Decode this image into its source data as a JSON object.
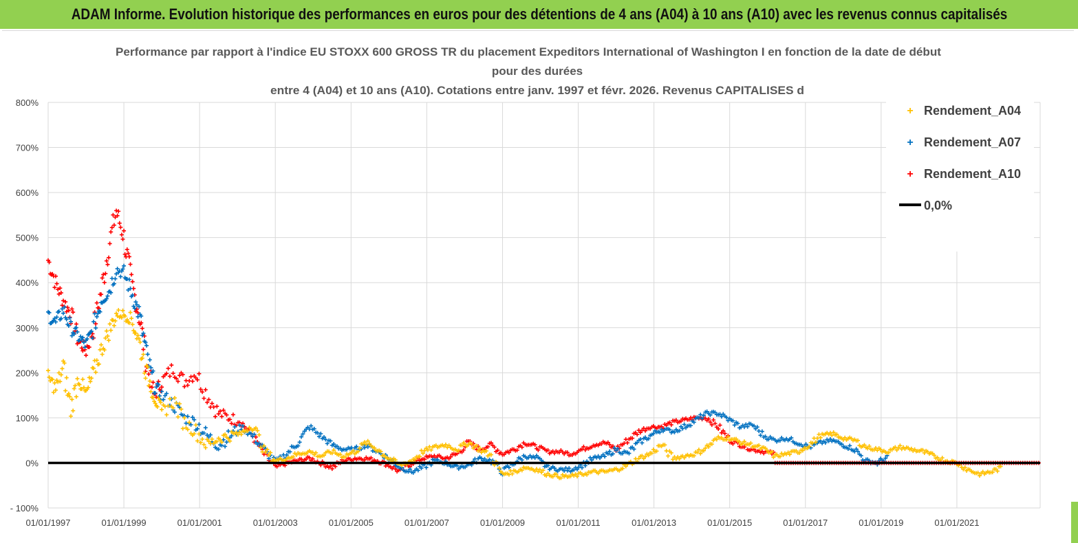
{
  "banner": {
    "title": "ADAM Informe. Evolution historique des performances en euros pour des détentions de 4 ans (A04) à 10 ans (A10) avec les revenus connus capitalisés"
  },
  "colors": {
    "banner_bg": "#92d050",
    "a04": "#ffc000",
    "a07": "#0070c0",
    "a10": "#ff0000",
    "zero": "#000000",
    "grid": "#d9d9d9"
  },
  "chart_data": {
    "type": "scatter",
    "title_lines": [
      "Performance par rapport à l'indice EU STOXX 600 GROSS TR  du placement Expeditors International of Washington I en fonction de la date de début",
      "pour des durées",
      "entre 4 (A04) et 10 ans (A10). Cotations entre janv. 1997 et févr. 2026. Revenus CAPITALISES d"
    ],
    "y_ticks": [
      "800%",
      "700%",
      "600%",
      "500%",
      "400%",
      "300%",
      "200%",
      "100%",
      "0%",
      "- 100%"
    ],
    "x_ticks": [
      "01/01/1997",
      "01/01/1999",
      "01/01/2001",
      "01/01/2003",
      "01/01/2005",
      "01/01/2007",
      "01/01/2009",
      "01/01/2011",
      "01/01/2013",
      "01/01/2015",
      "01/01/2017",
      "01/01/2019",
      "01/01/2021"
    ],
    "ylim": [
      -100,
      800
    ],
    "xlim": [
      1997.0,
      2023.2
    ],
    "legend": [
      "Rendement_A04",
      "Rendement_A07",
      "Rendement_A10",
      "0,0%"
    ],
    "legend_position": "right",
    "series": [
      {
        "name": "Rendement_A04",
        "x": [
          1997.0,
          1997.2,
          1997.4,
          1997.6,
          1997.8,
          1998.0,
          1998.2,
          1998.4,
          1998.6,
          1998.8,
          1999.0,
          1999.2,
          1999.4,
          1999.6,
          1999.8,
          2000.0,
          2000.3,
          2000.6,
          2000.9,
          2001.2,
          2001.5,
          2001.8,
          2002.1,
          2002.4,
          2002.7,
          2003.0,
          2003.3,
          2003.6,
          2003.9,
          2004.2,
          2004.5,
          2004.8,
          2005.1,
          2005.4,
          2005.7,
          2006.0,
          2006.3,
          2006.6,
          2006.9,
          2007.2,
          2007.5,
          2007.8,
          2008.1,
          2008.4,
          2008.7,
          2009.0,
          2009.3,
          2009.6,
          2009.9,
          2010.2,
          2010.5,
          2010.8,
          2011.1,
          2011.4,
          2011.7,
          2012.0,
          2012.3,
          2012.6,
          2012.9,
          2013.2,
          2013.5,
          2013.8,
          2014.1,
          2014.4,
          2014.7,
          2015.0,
          2015.3,
          2015.6,
          2015.9,
          2016.2,
          2016.5,
          2016.8,
          2017.1,
          2017.4,
          2017.7,
          2018.0,
          2018.3,
          2018.6,
          2018.9,
          2019.2,
          2019.5,
          2019.8,
          2020.1,
          2020.4,
          2020.7,
          2021.0,
          2021.3,
          2021.6,
          2021.9,
          2022.2
        ],
        "y": [
          190,
          165,
          210,
          120,
          190,
          150,
          200,
          250,
          290,
          330,
          330,
          320,
          270,
          200,
          150,
          110,
          140,
          90,
          70,
          40,
          55,
          60,
          65,
          85,
          30,
          5,
          10,
          20,
          25,
          15,
          25,
          15,
          25,
          45,
          30,
          10,
          -5,
          5,
          25,
          35,
          40,
          30,
          45,
          30,
          15,
          -25,
          -20,
          -10,
          -15,
          -25,
          -30,
          -30,
          -25,
          -20,
          -20,
          -15,
          -5,
          10,
          20,
          40,
          10,
          15,
          20,
          35,
          55,
          55,
          45,
          40,
          30,
          15,
          20,
          25,
          40,
          60,
          65,
          55,
          50,
          35,
          30,
          25,
          35,
          30,
          25,
          15,
          5,
          0,
          -15,
          -25,
          -20,
          -10
        ]
      },
      {
        "name": "Rendement_A07",
        "x": [
          1997.0,
          1997.2,
          1997.4,
          1997.6,
          1997.8,
          1998.0,
          1998.2,
          1998.4,
          1998.6,
          1998.8,
          1999.0,
          1999.2,
          1999.4,
          1999.6,
          1999.8,
          2000.0,
          2000.3,
          2000.6,
          2000.9,
          2001.2,
          2001.5,
          2001.8,
          2002.1,
          2002.4,
          2002.7,
          2003.0,
          2003.3,
          2003.6,
          2003.9,
          2004.2,
          2004.5,
          2004.8,
          2005.1,
          2005.4,
          2005.7,
          2006.0,
          2006.3,
          2006.6,
          2006.9,
          2007.2,
          2007.5,
          2007.8,
          2008.1,
          2008.4,
          2008.7,
          2009.0,
          2009.3,
          2009.6,
          2009.9,
          2010.2,
          2010.5,
          2010.8,
          2011.1,
          2011.4,
          2011.7,
          2012.0,
          2012.3,
          2012.6,
          2012.9,
          2013.2,
          2013.5,
          2013.8,
          2014.1,
          2014.4,
          2014.7,
          2015.0,
          2015.3,
          2015.6,
          2015.9,
          2016.2,
          2016.5,
          2016.8,
          2017.1,
          2017.4,
          2017.7,
          2018.0,
          2018.3,
          2018.6,
          2018.9,
          2019.2
        ],
        "y": [
          330,
          310,
          340,
          300,
          280,
          260,
          300,
          360,
          380,
          430,
          420,
          380,
          330,
          240,
          170,
          150,
          130,
          100,
          90,
          60,
          40,
          60,
          80,
          60,
          30,
          0,
          20,
          45,
          80,
          60,
          40,
          30,
          30,
          40,
          25,
          10,
          -10,
          -20,
          -10,
          5,
          0,
          -10,
          -5,
          10,
          5,
          -20,
          0,
          15,
          10,
          -10,
          -15,
          -15,
          -5,
          10,
          15,
          30,
          20,
          45,
          60,
          75,
          70,
          80,
          95,
          110,
          110,
          95,
          80,
          85,
          60,
          50,
          55,
          45,
          35,
          45,
          50,
          40,
          30,
          5,
          0,
          15
        ]
      },
      {
        "name": "Rendement_A10",
        "x": [
          1997.0,
          1997.2,
          1997.4,
          1997.6,
          1997.8,
          1998.0,
          1998.2,
          1998.4,
          1998.6,
          1998.8,
          1999.0,
          1999.2,
          1999.4,
          1999.6,
          1999.8,
          2000.0,
          2000.3,
          2000.6,
          2000.9,
          2001.2,
          2001.5,
          2001.8,
          2002.1,
          2002.4,
          2002.7,
          2003.0,
          2003.3,
          2003.6,
          2003.9,
          2004.2,
          2004.5,
          2004.8,
          2005.1,
          2005.4,
          2005.7,
          2006.0,
          2006.3,
          2006.6,
          2006.9,
          2007.2,
          2007.5,
          2007.8,
          2008.1,
          2008.4,
          2008.7,
          2009.0,
          2009.3,
          2009.6,
          2009.9,
          2010.2,
          2010.5,
          2010.8,
          2011.1,
          2011.4,
          2011.7,
          2012.0,
          2012.3,
          2012.6,
          2012.9,
          2013.2,
          2013.5,
          2013.8,
          2014.1,
          2014.4,
          2014.7,
          2015.0,
          2015.3,
          2015.6,
          2015.9,
          2016.2
        ],
        "y": [
          450,
          400,
          360,
          330,
          270,
          250,
          300,
          380,
          480,
          560,
          500,
          400,
          330,
          220,
          150,
          180,
          210,
          180,
          200,
          150,
          110,
          100,
          90,
          60,
          20,
          -10,
          0,
          5,
          10,
          0,
          -10,
          5,
          10,
          10,
          5,
          -5,
          -20,
          0,
          10,
          15,
          10,
          20,
          45,
          30,
          40,
          20,
          30,
          45,
          35,
          25,
          25,
          20,
          30,
          40,
          45,
          30,
          50,
          70,
          80,
          80,
          90,
          95,
          100,
          100,
          80,
          50,
          40,
          30,
          25,
          20
        ]
      },
      {
        "name": "0,0%",
        "x": [
          1997.0,
          2023.2
        ],
        "y": [
          0,
          0
        ]
      }
    ],
    "a10_zero_from": 2016.2
  }
}
